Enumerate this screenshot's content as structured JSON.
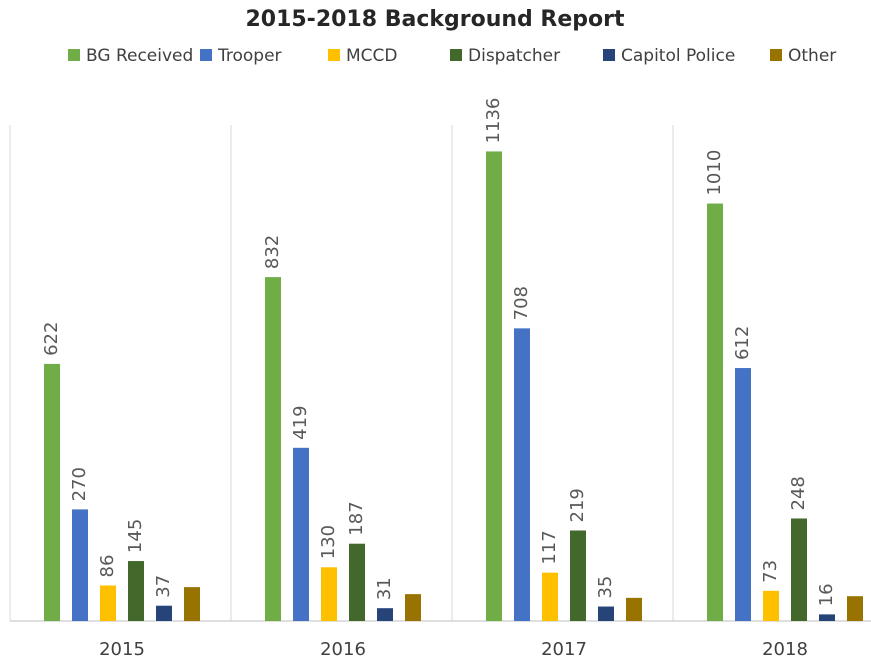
{
  "chart_data": {
    "type": "bar",
    "title": "2015-2018 Background Report",
    "categories": [
      "2015",
      "2016",
      "2017",
      "2018"
    ],
    "series": [
      {
        "name": "BG Received",
        "color": "#70ad47",
        "values": [
          622,
          832,
          1136,
          1010
        ],
        "show_labels": true
      },
      {
        "name": "Trooper",
        "color": "#4472c4",
        "values": [
          270,
          419,
          708,
          612
        ],
        "show_labels": true
      },
      {
        "name": "MCCD",
        "color": "#ffc000",
        "values": [
          86,
          130,
          117,
          73
        ],
        "show_labels": true
      },
      {
        "name": "Dispatcher",
        "color": "#43682b",
        "values": [
          145,
          187,
          219,
          248
        ],
        "show_labels": true
      },
      {
        "name": "Capitol Police",
        "color": "#264478",
        "values": [
          37,
          31,
          35,
          16
        ],
        "show_labels": true
      },
      {
        "name": "Other",
        "color": "#997300",
        "values": [
          82,
          65,
          56,
          60
        ],
        "show_labels": false
      }
    ],
    "ylim": [
      0,
      1200
    ],
    "legend": "top"
  }
}
